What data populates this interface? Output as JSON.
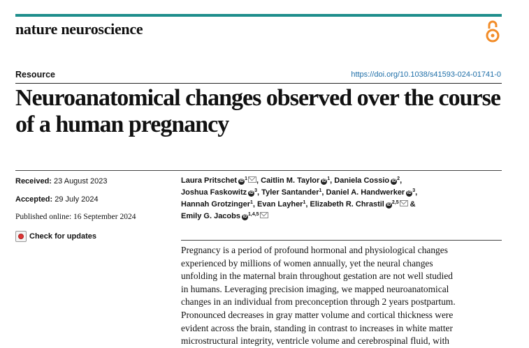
{
  "header": {
    "journal": "nature neuroscience",
    "open_access_icon": "open-access-icon",
    "accent_color": "#1f8e8c"
  },
  "article": {
    "section": "Resource",
    "doi": "https://doi.org/10.1038/s41593-024-01741-0",
    "title": "Neuroanatomical changes observed over the course of a human pregnancy"
  },
  "dates": {
    "received_label": "Received:",
    "received": "23 August 2023",
    "accepted_label": "Accepted:",
    "accepted": "29 July 2024",
    "published": "Published online: 16 September 2024"
  },
  "check_updates": "Check for updates",
  "authors": [
    {
      "name": "Laura Pritschet",
      "aff": "1"
    },
    {
      "name": "Caitlin M. Taylor",
      "aff": "1"
    },
    {
      "name": "Daniela Cossio",
      "aff": "2"
    },
    {
      "name": "Joshua Faskowitz",
      "aff": "3"
    },
    {
      "name": "Tyler Santander",
      "aff": "1"
    },
    {
      "name": "Daniel A. Handwerker",
      "aff": "3"
    },
    {
      "name": "Hannah Grotzinger",
      "aff": "1"
    },
    {
      "name": "Evan Layher",
      "aff": "1"
    },
    {
      "name": "Elizabeth R. Chrastil",
      "aff": "2,5"
    },
    {
      "name": "Emily G. Jacobs",
      "aff": "1,4,5"
    }
  ],
  "author_connector": "&",
  "abstract": [
    "Pregnancy is a period of profound hormonal and physiological changes",
    "experienced by millions of women annually, yet the neural changes",
    "unfolding in the maternal brain throughout gestation are not well studied",
    "in humans. Leveraging precision imaging, we mapped neuroanatomical",
    "changes in an individual from preconception through 2 years postpartum.",
    "Pronounced decreases in gray matter volume and cortical thickness were",
    "evident across the brain, standing in contrast to increases in white matter",
    "microstructural integrity, ventricle volume and cerebrospinal fluid, with"
  ]
}
